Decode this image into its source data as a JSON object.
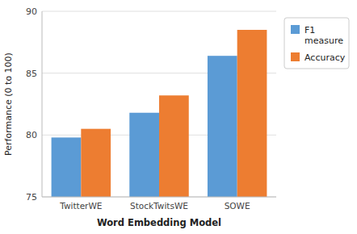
{
  "chart_data": {
    "type": "bar",
    "xlabel": "Word Embedding Model",
    "ylabel": "Performance (0 to 100)",
    "categories": [
      "TwitterWE",
      "StockTwitsWE",
      "SOWE"
    ],
    "series": [
      {
        "name": "F1\nmeasure",
        "color": "#5B9BD5",
        "values": [
          79.8,
          81.8,
          86.4
        ]
      },
      {
        "name": "Accuracy",
        "color": "#ED7D31",
        "values": [
          80.5,
          83.2,
          88.5
        ]
      }
    ],
    "ylim": [
      75,
      90
    ],
    "yticks": [
      75,
      80,
      85,
      90
    ],
    "grid": true,
    "legend": "right"
  }
}
